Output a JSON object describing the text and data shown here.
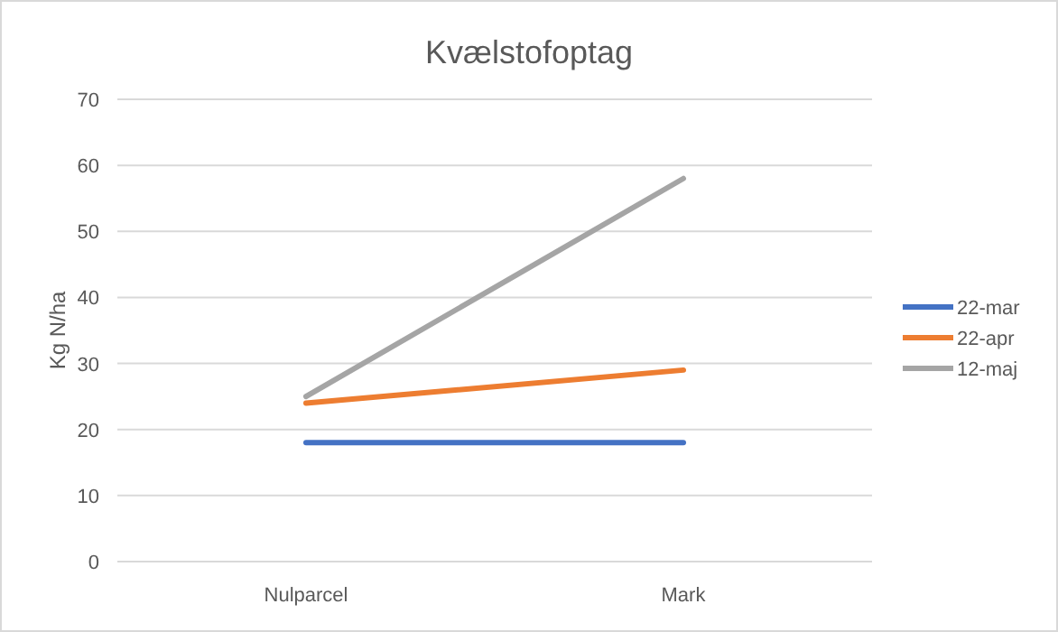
{
  "chart_data": {
    "type": "line",
    "title": "Kvælstofoptag",
    "ylabel": "Kg N/ha",
    "categories": [
      "Nulparcel",
      "Mark"
    ],
    "series": [
      {
        "name": "22-mar",
        "color": "#4472c4",
        "values": [
          18,
          18
        ]
      },
      {
        "name": "22-apr",
        "color": "#ed7d31",
        "values": [
          24,
          29
        ]
      },
      {
        "name": "12-maj",
        "color": "#a5a5a5",
        "values": [
          25,
          58
        ]
      }
    ],
    "ylim": [
      0,
      70
    ],
    "yticks": [
      0,
      10,
      20,
      30,
      40,
      50,
      60,
      70
    ],
    "grid": "y",
    "legend": "right",
    "marker": "none",
    "line_style": "solid"
  }
}
